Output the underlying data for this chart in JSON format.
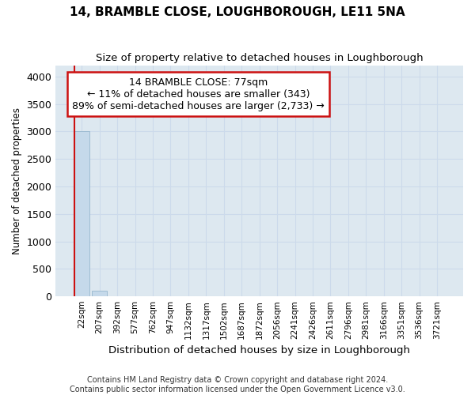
{
  "title": "14, BRAMBLE CLOSE, LOUGHBOROUGH, LE11 5NA",
  "subtitle": "Size of property relative to detached houses in Loughborough",
  "xlabel": "Distribution of detached houses by size in Loughborough",
  "ylabel": "Number of detached properties",
  "categories": [
    "22sqm",
    "207sqm",
    "392sqm",
    "577sqm",
    "762sqm",
    "947sqm",
    "1132sqm",
    "1317sqm",
    "1502sqm",
    "1687sqm",
    "1872sqm",
    "2056sqm",
    "2241sqm",
    "2426sqm",
    "2611sqm",
    "2796sqm",
    "2981sqm",
    "3166sqm",
    "3351sqm",
    "3536sqm",
    "3721sqm"
  ],
  "values": [
    3000,
    100,
    0,
    0,
    0,
    0,
    0,
    0,
    0,
    0,
    0,
    0,
    0,
    0,
    0,
    0,
    0,
    0,
    0,
    0,
    0
  ],
  "bar_color": "#c5d9ea",
  "bar_edge_color": "#8baec8",
  "grid_color": "#ccdaeb",
  "background_color": "#dde8f0",
  "annotation_box_edgecolor": "#cc1111",
  "annotation_line1": "14 BRAMBLE CLOSE: 77sqm",
  "annotation_line2": "← 11% of detached houses are smaller (343)",
  "annotation_line3": "89% of semi-detached houses are larger (2,733) →",
  "footer_line1": "Contains HM Land Registry data © Crown copyright and database right 2024.",
  "footer_line2": "Contains public sector information licensed under the Open Government Licence v3.0.",
  "ylim": [
    0,
    4200
  ],
  "yticks": [
    0,
    500,
    1000,
    1500,
    2000,
    2500,
    3000,
    3500,
    4000
  ],
  "vline_color": "#cc1111",
  "vline_x_index": 0
}
